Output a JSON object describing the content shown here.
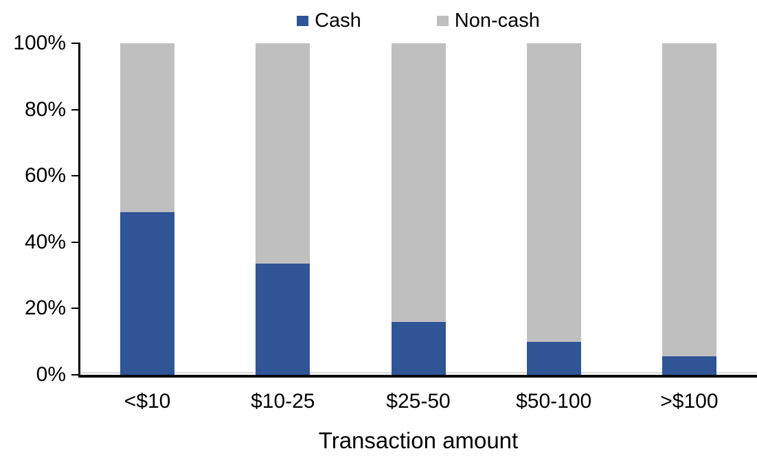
{
  "chart_data": {
    "type": "bar",
    "stacked": true,
    "title": "",
    "xlabel": "Transaction amount",
    "ylabel": "",
    "categories": [
      "<$10",
      "$10-25",
      "$25-50",
      "$50-100",
      ">$100"
    ],
    "series": [
      {
        "name": "Cash",
        "color": "#2F5597",
        "values": [
          49,
          33.5,
          16,
          10,
          5.5
        ]
      },
      {
        "name": "Non-cash",
        "color": "#BFBFBF",
        "values": [
          51,
          66.5,
          84,
          90,
          94.5
        ]
      }
    ],
    "ylim": [
      0,
      100
    ],
    "yticks": [
      "0%",
      "20%",
      "40%",
      "60%",
      "80%",
      "100%"
    ],
    "legend_position": "top",
    "grid": false,
    "axis_color": "#000000",
    "background_color": "#FFFFFF"
  }
}
